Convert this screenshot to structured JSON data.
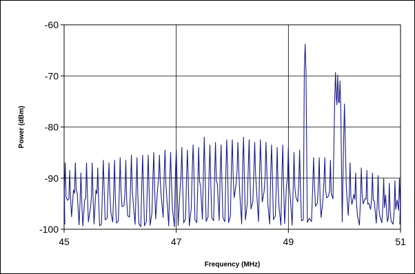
{
  "chart_data": {
    "type": "line",
    "title": "",
    "xlabel": "Frequency (MHz)",
    "ylabel": "Power (dBm)",
    "xlim": [
      45,
      51
    ],
    "ylim": [
      -100,
      -60
    ],
    "xticks": [
      "45",
      "47",
      "49",
      "51"
    ],
    "yticks": [
      "-60",
      "-70",
      "-80",
      "-90",
      "-100"
    ],
    "grid": true,
    "legend": "none",
    "series": [
      {
        "color": "#1a1a8c",
        "peaks": [
          {
            "x": 45.02,
            "y": -87
          },
          {
            "x": 45.1,
            "y": -88.5
          },
          {
            "x": 45.2,
            "y": -87
          },
          {
            "x": 45.3,
            "y": -89
          },
          {
            "x": 45.4,
            "y": -87
          },
          {
            "x": 45.5,
            "y": -87
          },
          {
            "x": 45.6,
            "y": -88
          },
          {
            "x": 45.7,
            "y": -86.5
          },
          {
            "x": 45.8,
            "y": -87
          },
          {
            "x": 45.9,
            "y": -86.5
          },
          {
            "x": 46.0,
            "y": -86
          },
          {
            "x": 46.1,
            "y": -86.5
          },
          {
            "x": 46.2,
            "y": -85.5
          },
          {
            "x": 46.3,
            "y": -86
          },
          {
            "x": 46.4,
            "y": -85.5
          },
          {
            "x": 46.5,
            "y": -85.5
          },
          {
            "x": 46.6,
            "y": -85
          },
          {
            "x": 46.7,
            "y": -85.5
          },
          {
            "x": 46.8,
            "y": -84.5
          },
          {
            "x": 46.9,
            "y": -85
          },
          {
            "x": 47.0,
            "y": -84.5
          },
          {
            "x": 47.1,
            "y": -84
          },
          {
            "x": 47.2,
            "y": -84.5
          },
          {
            "x": 47.3,
            "y": -83.5
          },
          {
            "x": 47.4,
            "y": -84
          },
          {
            "x": 47.5,
            "y": -82
          },
          {
            "x": 47.6,
            "y": -83.5
          },
          {
            "x": 47.7,
            "y": -83
          },
          {
            "x": 47.8,
            "y": -83.5
          },
          {
            "x": 47.9,
            "y": -82.5
          },
          {
            "x": 48.0,
            "y": -82.5
          },
          {
            "x": 48.1,
            "y": -83
          },
          {
            "x": 48.2,
            "y": -82
          },
          {
            "x": 48.3,
            "y": -82.5
          },
          {
            "x": 48.4,
            "y": -83
          },
          {
            "x": 48.5,
            "y": -82.5
          },
          {
            "x": 48.6,
            "y": -83
          },
          {
            "x": 48.7,
            "y": -83.5
          },
          {
            "x": 48.8,
            "y": -84
          },
          {
            "x": 48.9,
            "y": -83.5
          },
          {
            "x": 49.0,
            "y": -84
          },
          {
            "x": 49.1,
            "y": -85
          },
          {
            "x": 49.2,
            "y": -84.5
          },
          {
            "x": 49.3,
            "y": -63.8
          },
          {
            "x": 49.45,
            "y": -86
          },
          {
            "x": 49.55,
            "y": -86
          },
          {
            "x": 49.65,
            "y": -86
          },
          {
            "x": 49.75,
            "y": -86.5
          },
          {
            "x": 49.84,
            "y": -69.3
          },
          {
            "x": 49.88,
            "y": -69.8
          },
          {
            "x": 49.92,
            "y": -71
          },
          {
            "x": 50.0,
            "y": -75.5
          },
          {
            "x": 50.1,
            "y": -87
          },
          {
            "x": 50.2,
            "y": -89
          },
          {
            "x": 50.3,
            "y": -88
          },
          {
            "x": 50.4,
            "y": -88.5
          },
          {
            "x": 50.5,
            "y": -89
          },
          {
            "x": 50.6,
            "y": -89.5
          },
          {
            "x": 50.7,
            "y": -90
          },
          {
            "x": 50.8,
            "y": -91
          },
          {
            "x": 50.9,
            "y": -90.5
          },
          {
            "x": 50.98,
            "y": -90
          }
        ]
      }
    ]
  }
}
